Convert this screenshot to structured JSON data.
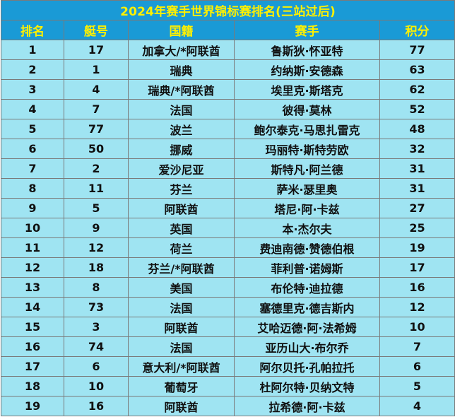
{
  "table": {
    "title": "2024年赛手世界锦标赛排名(三站过后)",
    "headers": {
      "rank": "排名",
      "boat": "艇号",
      "country": "国籍",
      "racer": "赛手",
      "points": "积分"
    },
    "rows": [
      {
        "rank": "1",
        "boat": "17",
        "country": "加拿大/*阿联酋",
        "racer": "鲁斯狄·怀亚特",
        "points": "77"
      },
      {
        "rank": "2",
        "boat": "1",
        "country": "瑞典",
        "racer": "约纳斯·安德森",
        "points": "63"
      },
      {
        "rank": "3",
        "boat": "4",
        "country": "瑞典/*阿联酋",
        "racer": "埃里克·斯塔克",
        "points": "62"
      },
      {
        "rank": "4",
        "boat": "7",
        "country": "法国",
        "racer": "彼得·莫林",
        "points": "52"
      },
      {
        "rank": "5",
        "boat": "77",
        "country": "波兰",
        "racer": "鲍尔泰克·马思扎雷克",
        "points": "48"
      },
      {
        "rank": "6",
        "boat": "50",
        "country": "挪威",
        "racer": "玛丽特·斯特劳欧",
        "points": "32"
      },
      {
        "rank": "7",
        "boat": "2",
        "country": "爱沙尼亚",
        "racer": "斯特凡·阿兰德",
        "points": "31"
      },
      {
        "rank": "8",
        "boat": "11",
        "country": "芬兰",
        "racer": "萨米·瑟里奥",
        "points": "31"
      },
      {
        "rank": "9",
        "boat": "5",
        "country": "阿联酋",
        "racer": "塔尼·阿·卡兹",
        "points": "27"
      },
      {
        "rank": "10",
        "boat": "9",
        "country": "英国",
        "racer": "本·杰尔夫",
        "points": "25"
      },
      {
        "rank": "11",
        "boat": "12",
        "country": "荷兰",
        "racer": "费迪南德·赞德伯根",
        "points": "19"
      },
      {
        "rank": "12",
        "boat": "18",
        "country": "芬兰/*阿联酋",
        "racer": "菲利普·诺姆斯",
        "points": "17"
      },
      {
        "rank": "13",
        "boat": "8",
        "country": "美国",
        "racer": "布伦特·迪拉德",
        "points": "16"
      },
      {
        "rank": "14",
        "boat": "73",
        "country": "法国",
        "racer": "塞德里克·德吉斯内",
        "points": "12"
      },
      {
        "rank": "15",
        "boat": "3",
        "country": "阿联酋",
        "racer": "艾哈迈德·阿·法希姆",
        "points": "10"
      },
      {
        "rank": "16",
        "boat": "74",
        "country": "法国",
        "racer": "亚历山大·布尔乔",
        "points": "7"
      },
      {
        "rank": "17",
        "boat": "6",
        "country": "意大利/*阿联酋",
        "racer": "阿尔贝托·孔帕拉托",
        "points": "6"
      },
      {
        "rank": "18",
        "boat": "10",
        "country": "葡萄牙",
        "racer": "杜阿尔特·贝纳文特",
        "points": "5"
      },
      {
        "rank": "19",
        "boat": "16",
        "country": "阿联酋",
        "racer": "拉希德·阿·卡兹",
        "points": "4"
      }
    ]
  }
}
